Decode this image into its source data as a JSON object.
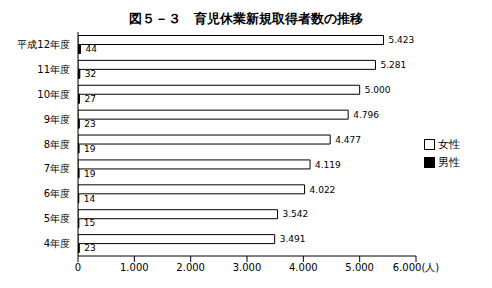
{
  "chart_data": {
    "type": "bar",
    "title": "図５－３　育児休業新規取得者数の推移",
    "orientation": "horizontal",
    "categories": [
      "平成12年度",
      "11年度",
      "10年度",
      "9年度",
      "8年度",
      "7年度",
      "6年度",
      "5年度",
      "4年度"
    ],
    "series": [
      {
        "name": "女性",
        "color": "#ffffff",
        "values": [
          5423,
          5281,
          5000,
          4796,
          4477,
          4119,
          4022,
          3542,
          3491
        ],
        "value_labels": [
          "5.423",
          "5.281",
          "5.000",
          "4.796",
          "4.477",
          "4.119",
          "4.022",
          "3.542",
          "3.491"
        ]
      },
      {
        "name": "男性",
        "color": "#000000",
        "values": [
          44,
          32,
          27,
          23,
          19,
          19,
          14,
          15,
          23
        ]
      }
    ],
    "xlim": [
      0,
      6000
    ],
    "xticks": [
      0,
      {
        "value": 1000,
        "label": "1.000"
      },
      {
        "value": 2000,
        "label": "2.000"
      },
      {
        "value": 3000,
        "label": "3.000"
      },
      {
        "value": 4000,
        "label": "4.000"
      },
      {
        "value": 5000,
        "label": "5.000"
      },
      {
        "value": 6000,
        "label": "6.000(人)"
      }
    ],
    "data_labels": true,
    "legend": "right",
    "grid": false
  }
}
